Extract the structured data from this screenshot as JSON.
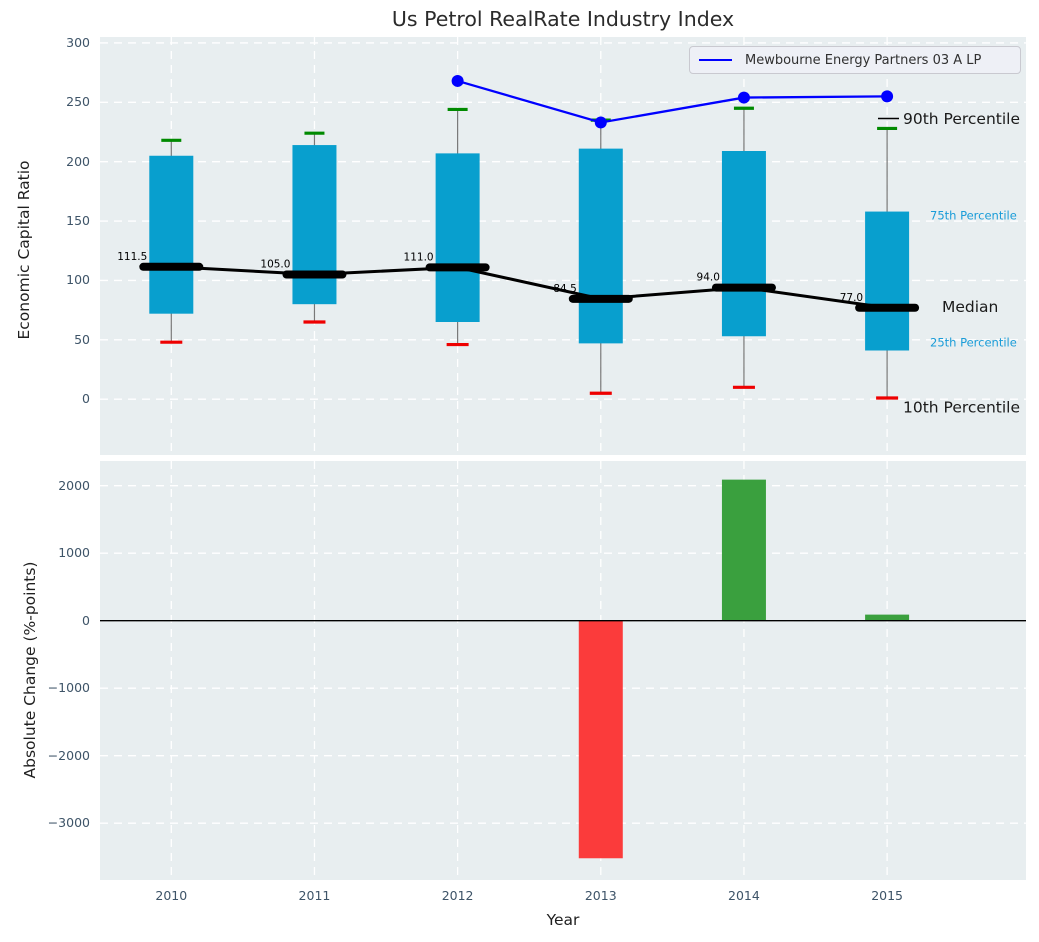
{
  "title": "Us Petrol RealRate Industry Index",
  "legend": {
    "label": "Mewbourne Energy Partners 03 A LP"
  },
  "colors": {
    "box_fill": "#089fce",
    "median_line": "#000000",
    "company_line": "#0000ff",
    "whisker": "#787878",
    "cap_high": "#008a00",
    "cap_low": "#ee0000",
    "bar_positive": "#3aa03e",
    "bar_negative": "#fb3b3b",
    "plot_bg": "#e8eef0",
    "grid": "#ffffff",
    "tick_label": "#3e5468",
    "accent_label": "#1a9cd8",
    "dark_label": "#1a1a1a"
  },
  "chart_data": [
    {
      "type": "box",
      "title": "Us Petrol RealRate Industry Index",
      "ylabel": "Economic Capital Ratio",
      "ylim": [
        -47,
        305
      ],
      "yticks": [
        0,
        50,
        100,
        150,
        200,
        250,
        300
      ],
      "grid": "white-dashed",
      "legend_position": "upper right",
      "categories": [
        "2010",
        "2011",
        "2012",
        "2013",
        "2014",
        "2015"
      ],
      "boxes": [
        {
          "year": "2010",
          "p10": 48,
          "p25": 72,
          "median": 111.5,
          "p75": 205,
          "p90": 218,
          "median_label": "111.5"
        },
        {
          "year": "2011",
          "p10": 65,
          "p25": 80,
          "median": 105.0,
          "p75": 214,
          "p90": 224,
          "median_label": "105.0"
        },
        {
          "year": "2012",
          "p10": 46,
          "p25": 65,
          "median": 111.0,
          "p75": 207,
          "p90": 244,
          "median_label": "111.0"
        },
        {
          "year": "2013",
          "p10": 5,
          "p25": 47,
          "median": 84.5,
          "p75": 211,
          "p90": 235,
          "median_label": "84.5"
        },
        {
          "year": "2014",
          "p10": 10,
          "p25": 53,
          "median": 94.0,
          "p75": 209,
          "p90": 245,
          "median_label": "94.0"
        },
        {
          "year": "2015",
          "p10": 1,
          "p25": 41,
          "median": 77.0,
          "p75": 158,
          "p90": 228,
          "median_label": "77.0"
        }
      ],
      "series": [
        {
          "name": "Mewbourne Energy Partners 03 A LP",
          "x": [
            "2012",
            "2013",
            "2014",
            "2015"
          ],
          "values": [
            268,
            233,
            254,
            255
          ]
        }
      ],
      "annotations": [
        {
          "text": "90th Percentile",
          "style": "dark-large"
        },
        {
          "text": "75th Percentile",
          "style": "accent-small"
        },
        {
          "text": "Median",
          "style": "dark-large"
        },
        {
          "text": "25th Percentile",
          "style": "accent-small"
        },
        {
          "text": "10th Percentile",
          "style": "dark-large"
        }
      ]
    },
    {
      "type": "bar",
      "ylabel": "Absolute Change (%-points)",
      "xlabel": "Year",
      "ylim": [
        -3842,
        2366
      ],
      "yticks": [
        2000,
        1000,
        0,
        -1000,
        -2000,
        -3000
      ],
      "grid": "white-dashed",
      "zero_line": true,
      "categories": [
        "2010",
        "2011",
        "2012",
        "2013",
        "2014",
        "2015"
      ],
      "values": [
        null,
        null,
        null,
        -3520,
        2090,
        90
      ]
    }
  ]
}
